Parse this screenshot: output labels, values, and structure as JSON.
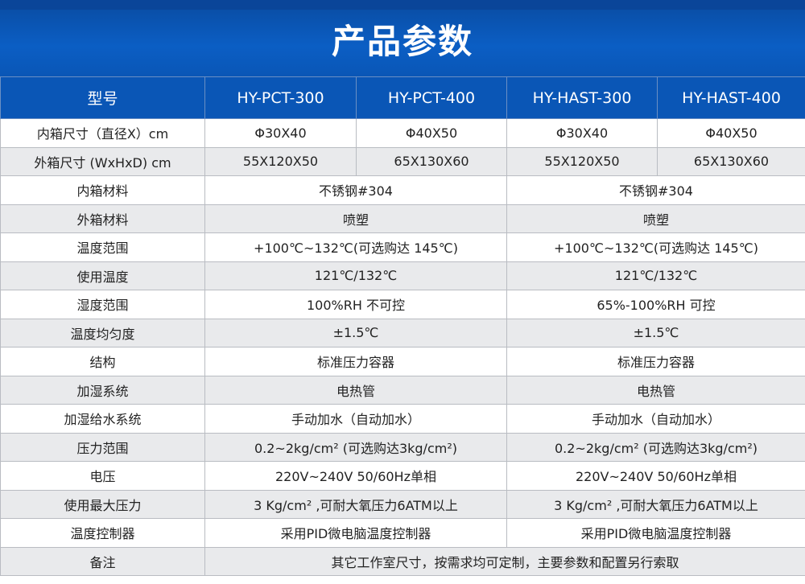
{
  "title": "产品参数",
  "header": [
    "型号",
    "HY-PCT-300",
    "HY-PCT-400",
    "HY-HAST-300",
    "HY-HAST-400"
  ],
  "rows": [
    {
      "label": "内箱尺寸（直径X）cm",
      "cells": [
        "Φ30X40",
        "Φ40X50",
        "Φ30X40",
        "Φ40X50"
      ]
    },
    {
      "label": "外箱尺寸 (WxHxD) cm",
      "cells": [
        "55X120X50",
        "65X130X60",
        "55X120X50",
        "65X130X60"
      ]
    },
    {
      "label": "内箱材料",
      "left": "不锈钢#304",
      "right": "不锈钢#304"
    },
    {
      "label": "外箱材料",
      "left": "喷塑",
      "right": "喷塑"
    },
    {
      "label": "温度范围",
      "left": "+100℃~132℃(可选购达 145℃)",
      "right": "+100℃~132℃(可选购达 145℃)"
    },
    {
      "label": "使用温度",
      "left": "121℃/132℃",
      "right": "121℃/132℃"
    },
    {
      "label": "湿度范围",
      "left": "100%RH 不可控",
      "right": "65%-100%RH 可控"
    },
    {
      "label": "温度均匀度",
      "left": "±1.5℃",
      "right": "±1.5℃"
    },
    {
      "label": "结构",
      "left": "标准压力容器",
      "right": "标准压力容器"
    },
    {
      "label": "加湿系统",
      "left": "电热管",
      "right": "电热管"
    },
    {
      "label": "加湿给水系统",
      "left": "手动加水（自动加水）",
      "right": "手动加水（自动加水）"
    },
    {
      "label": "压力范围",
      "left": "0.2~2kg/cm² (可选购达3kg/cm²)",
      "right": "0.2~2kg/cm² (可选购达3kg/cm²)"
    },
    {
      "label": "电压",
      "left": "220V~240V 50/60Hz单相",
      "right": "220V~240V 50/60Hz单相"
    },
    {
      "label": "使用最大压力",
      "left": "3 Kg/cm² ,可耐大氧压力6ATM以上",
      "right": "3 Kg/cm² ,可耐大氧压力6ATM以上"
    },
    {
      "label": "温度控制器",
      "left": "采用PID微电脑温度控制器",
      "right": "采用PID微电脑温度控制器"
    }
  ],
  "note": {
    "label": "备注",
    "text": "其它工作室尺寸，按需求均可定制，主要参数和配置另行索取"
  }
}
